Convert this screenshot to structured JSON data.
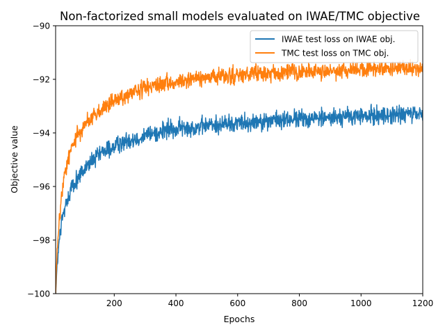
{
  "chart_data": {
    "type": "line",
    "title": "Non-factorized small models evaluated on IWAE/TMC objective",
    "xlabel": "Epochs",
    "ylabel": "Objective value",
    "xlim": [
      10,
      1200
    ],
    "ylim": [
      -100,
      -90
    ],
    "x_ticks": [
      200,
      400,
      600,
      800,
      1000,
      1200
    ],
    "y_ticks": [
      -100,
      -98,
      -96,
      -94,
      -92,
      -90
    ],
    "x_tick_labels": [
      "200",
      "400",
      "600",
      "800",
      "1000",
      "1200"
    ],
    "y_tick_labels": [
      "−100",
      "−98",
      "−96",
      "−94",
      "−92",
      "−90"
    ],
    "grid": false,
    "legend_position": "top-right",
    "series": [
      {
        "name": "IWAE test loss on IWAE obj.",
        "color": "#1f77b4",
        "x": [
          10,
          12,
          15,
          20,
          25,
          30,
          40,
          50,
          60,
          80,
          100,
          125,
          150,
          175,
          200,
          250,
          300,
          350,
          400,
          450,
          500,
          600,
          700,
          800,
          900,
          1000,
          1100,
          1200
        ],
        "y": [
          -100.0,
          -99.6,
          -99.0,
          -98.3,
          -97.7,
          -97.3,
          -96.8,
          -96.4,
          -96.1,
          -95.7,
          -95.4,
          -95.1,
          -94.85,
          -94.65,
          -94.5,
          -94.25,
          -94.1,
          -93.95,
          -93.85,
          -93.8,
          -93.72,
          -93.62,
          -93.55,
          -93.48,
          -93.42,
          -93.38,
          -93.33,
          -93.3
        ],
        "noise": 0.17
      },
      {
        "name": "TMC test loss on TMC obj.",
        "color": "#ff7f0e",
        "x": [
          10,
          12,
          15,
          20,
          25,
          30,
          40,
          50,
          60,
          80,
          100,
          125,
          150,
          175,
          200,
          250,
          300,
          350,
          400,
          450,
          500,
          600,
          700,
          800,
          900,
          1000,
          1100,
          1200
        ],
        "y": [
          -100.0,
          -99.3,
          -98.5,
          -97.6,
          -96.9,
          -96.3,
          -95.5,
          -95.0,
          -94.6,
          -94.1,
          -93.75,
          -93.45,
          -93.2,
          -93.0,
          -92.85,
          -92.55,
          -92.35,
          -92.2,
          -92.1,
          -92.0,
          -91.95,
          -91.85,
          -91.78,
          -91.72,
          -91.67,
          -91.63,
          -91.6,
          -91.58
        ],
        "noise": 0.15
      }
    ]
  }
}
